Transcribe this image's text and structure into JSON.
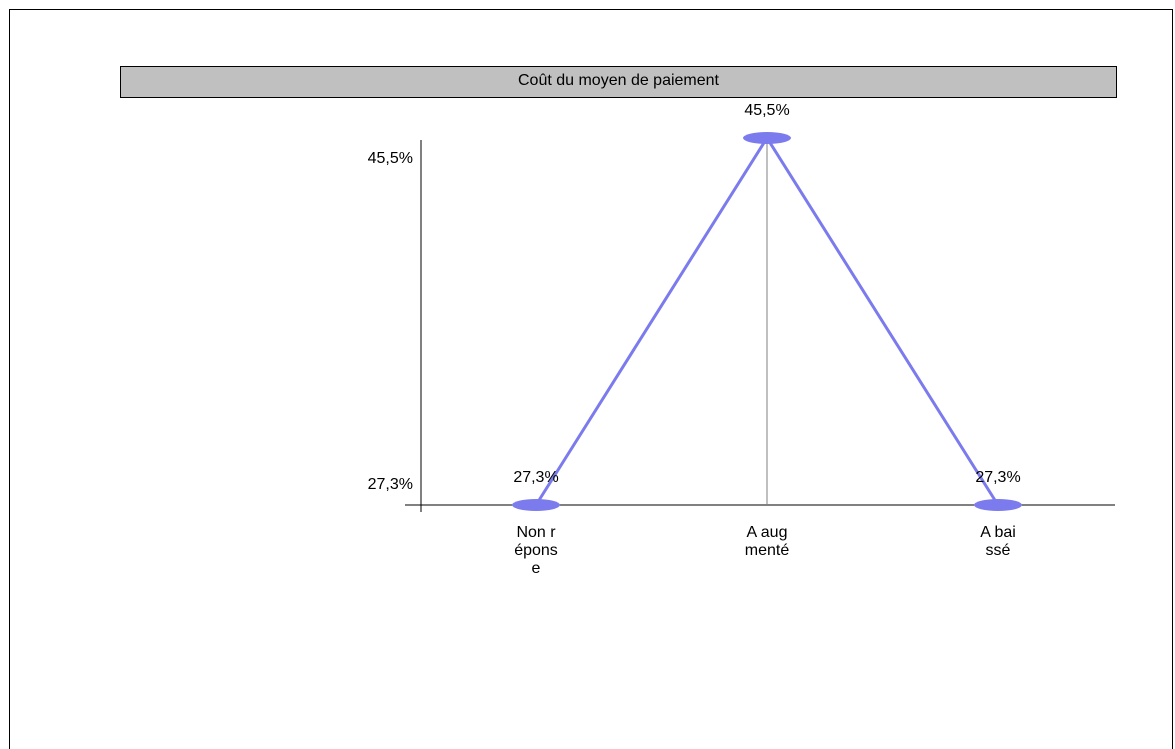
{
  "chart_data": {
    "type": "line",
    "title": "Coût du moyen de paiement",
    "categories": [
      "Non réponse",
      "A augmenté",
      "A baissé"
    ],
    "category_label_lines": [
      [
        "Non r",
        "épons",
        "e"
      ],
      [
        "A aug",
        "menté"
      ],
      [
        "A bai",
        "ssé"
      ]
    ],
    "series": [
      {
        "values": [
          27.3,
          45.5,
          27.3
        ],
        "value_labels": [
          "27,3%",
          "45,5%",
          "27,3%"
        ]
      }
    ],
    "ytick_labels": [
      "27,3%",
      "45,5%"
    ],
    "ylim": [
      27.3,
      45.5
    ],
    "series_color": "#7b7bee",
    "drop_line_color": "#808080",
    "grid": false,
    "legend": "none"
  }
}
